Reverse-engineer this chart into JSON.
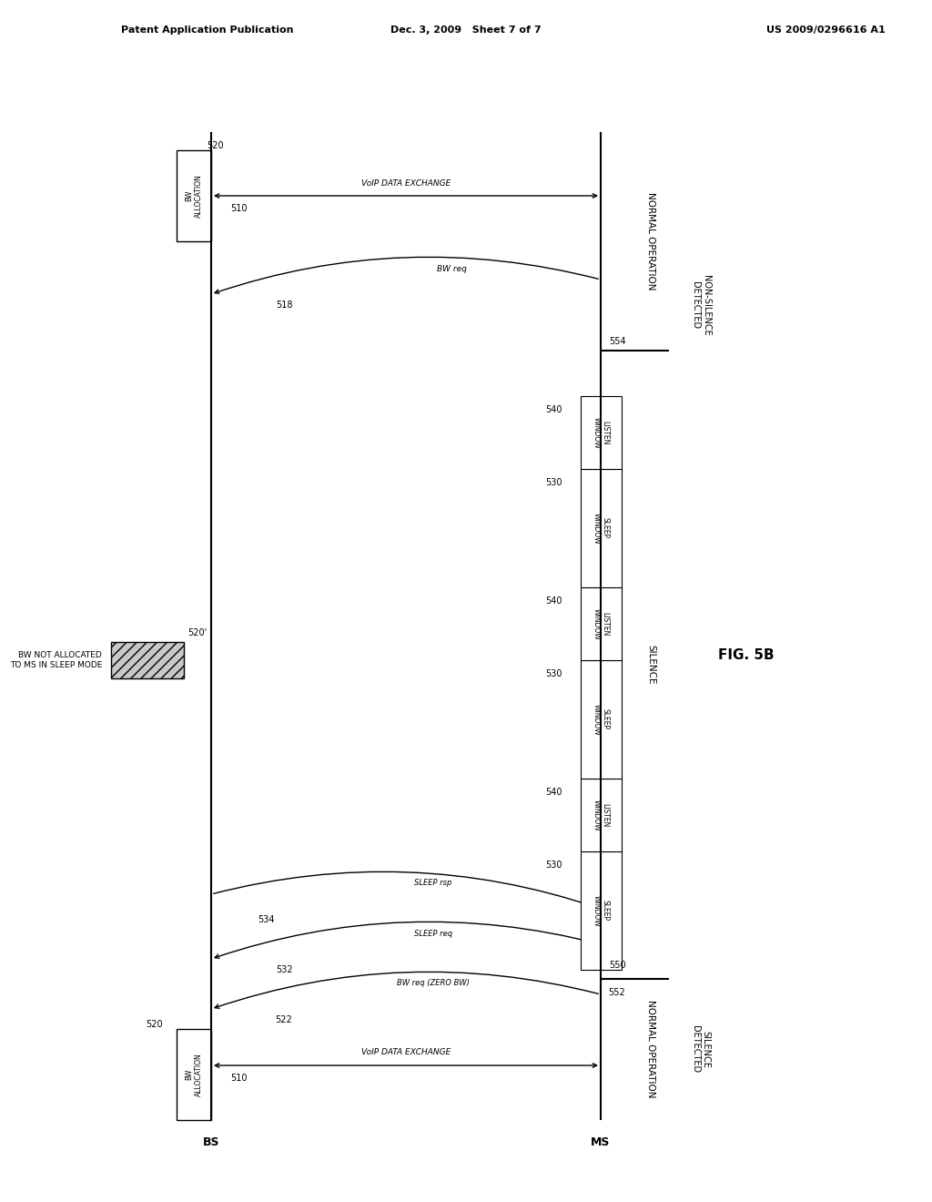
{
  "header_left": "Patent Application Publication",
  "header_center": "Dec. 3, 2009   Sheet 7 of 7",
  "header_right": "US 2009/0296616 A1",
  "fig_label": "FIG. 5B",
  "bg_color": "#ffffff",
  "bs_label": "BS",
  "ms_label": "MS",
  "bw_alloc_label": "BW\nALLOCATION",
  "normal_op_label": "NORMAL OPERATION",
  "silence_label": "SILENCE",
  "non_silence_label": "NON-SILENCE\nDETECTED",
  "silence_detected_label": "SILENCE\nDETECTED",
  "bw_not_alloc_label": "BW NOT ALLOCATED\nTO MS IN SLEEP MODE",
  "sleep_window_label": "SLEEP\nWINDOW",
  "listen_window_label": "LISTEN\nWINDOW",
  "voip_exchange_label": "VoIP DATA EXCHANGE",
  "bw_req_label": "BW req",
  "bw_req_zero_label": "BW req (ZERO BW)",
  "sleep_req_label": "SLEEP req",
  "sleep_rsp_label": "SLEEP rsp",
  "ref_510": "510",
  "ref_518": "518",
  "ref_520_bs": "520",
  "ref_520_top": "520",
  "ref_520_prime": "520'",
  "ref_522": "522",
  "ref_530": "530",
  "ref_532": "532",
  "ref_534": "534",
  "ref_540": "540",
  "ref_550": "550",
  "ref_552": "552",
  "ref_554": "554"
}
